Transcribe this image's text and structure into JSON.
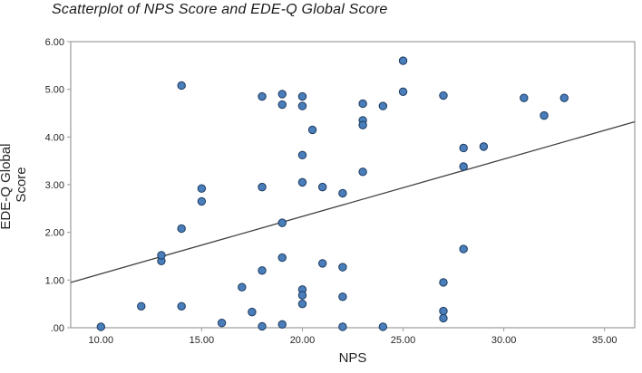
{
  "chart_data": {
    "type": "scatter",
    "title": "Scatterplot of NPS Score and EDE-Q Global Score",
    "xlabel": "NPS",
    "ylabel": "EDE-Q Global Score",
    "ylabel_lines": [
      "EDE-Q Global",
      "Score"
    ],
    "xlim": [
      8.5,
      36.5
    ],
    "ylim": [
      0,
      6
    ],
    "x_ticks": [
      10,
      15,
      20,
      25,
      30,
      35
    ],
    "x_tick_labels": [
      "10.00",
      "15.00",
      "20.00",
      "25.00",
      "30.00",
      "35.00"
    ],
    "y_ticks": [
      0,
      1,
      2,
      3,
      4,
      5,
      6
    ],
    "y_tick_labels": [
      ".00",
      "1.00",
      "2.00",
      "3.00",
      "4.00",
      "5.00",
      "6.00"
    ],
    "grid": false,
    "legend": "none",
    "points": [
      [
        10,
        0.02
      ],
      [
        12,
        0.45
      ],
      [
        13,
        1.4
      ],
      [
        13,
        1.52
      ],
      [
        14,
        0.45
      ],
      [
        14,
        5.08
      ],
      [
        14,
        2.08
      ],
      [
        15,
        2.92
      ],
      [
        15,
        2.65
      ],
      [
        16,
        0.1
      ],
      [
        17,
        0.85
      ],
      [
        17.5,
        0.33
      ],
      [
        18,
        4.85
      ],
      [
        18,
        2.95
      ],
      [
        18,
        1.2
      ],
      [
        18,
        0.03
      ],
      [
        19,
        4.9
      ],
      [
        19,
        4.68
      ],
      [
        19,
        2.2
      ],
      [
        19,
        1.47
      ],
      [
        19,
        0.07
      ],
      [
        20,
        4.85
      ],
      [
        20,
        4.65
      ],
      [
        20,
        3.62
      ],
      [
        20,
        3.05
      ],
      [
        20,
        0.8
      ],
      [
        20,
        0.68
      ],
      [
        20,
        0.5
      ],
      [
        20.5,
        4.15
      ],
      [
        21,
        2.95
      ],
      [
        21,
        1.35
      ],
      [
        22,
        2.82
      ],
      [
        22,
        1.27
      ],
      [
        22,
        0.65
      ],
      [
        22,
        0.02
      ],
      [
        23,
        4.7
      ],
      [
        23,
        4.35
      ],
      [
        23,
        4.25
      ],
      [
        23,
        3.27
      ],
      [
        24,
        4.65
      ],
      [
        24,
        0.02
      ],
      [
        25,
        5.6
      ],
      [
        25,
        4.95
      ],
      [
        27,
        4.87
      ],
      [
        27,
        0.95
      ],
      [
        27,
        0.35
      ],
      [
        27,
        0.2
      ],
      [
        28,
        3.77
      ],
      [
        28,
        3.38
      ],
      [
        28,
        1.65
      ],
      [
        29,
        3.8
      ],
      [
        31,
        4.82
      ],
      [
        32,
        4.45
      ],
      [
        33,
        4.82
      ]
    ],
    "fit_line": {
      "x1": 8.5,
      "y1": 0.95,
      "x2": 36.5,
      "y2": 4.32
    },
    "point_fill": "#4a7ebb",
    "point_stroke": "#1c3a5e",
    "line_color": "#404040",
    "border_color": "#9b9b9b",
    "plot_background": "#ffffff"
  }
}
